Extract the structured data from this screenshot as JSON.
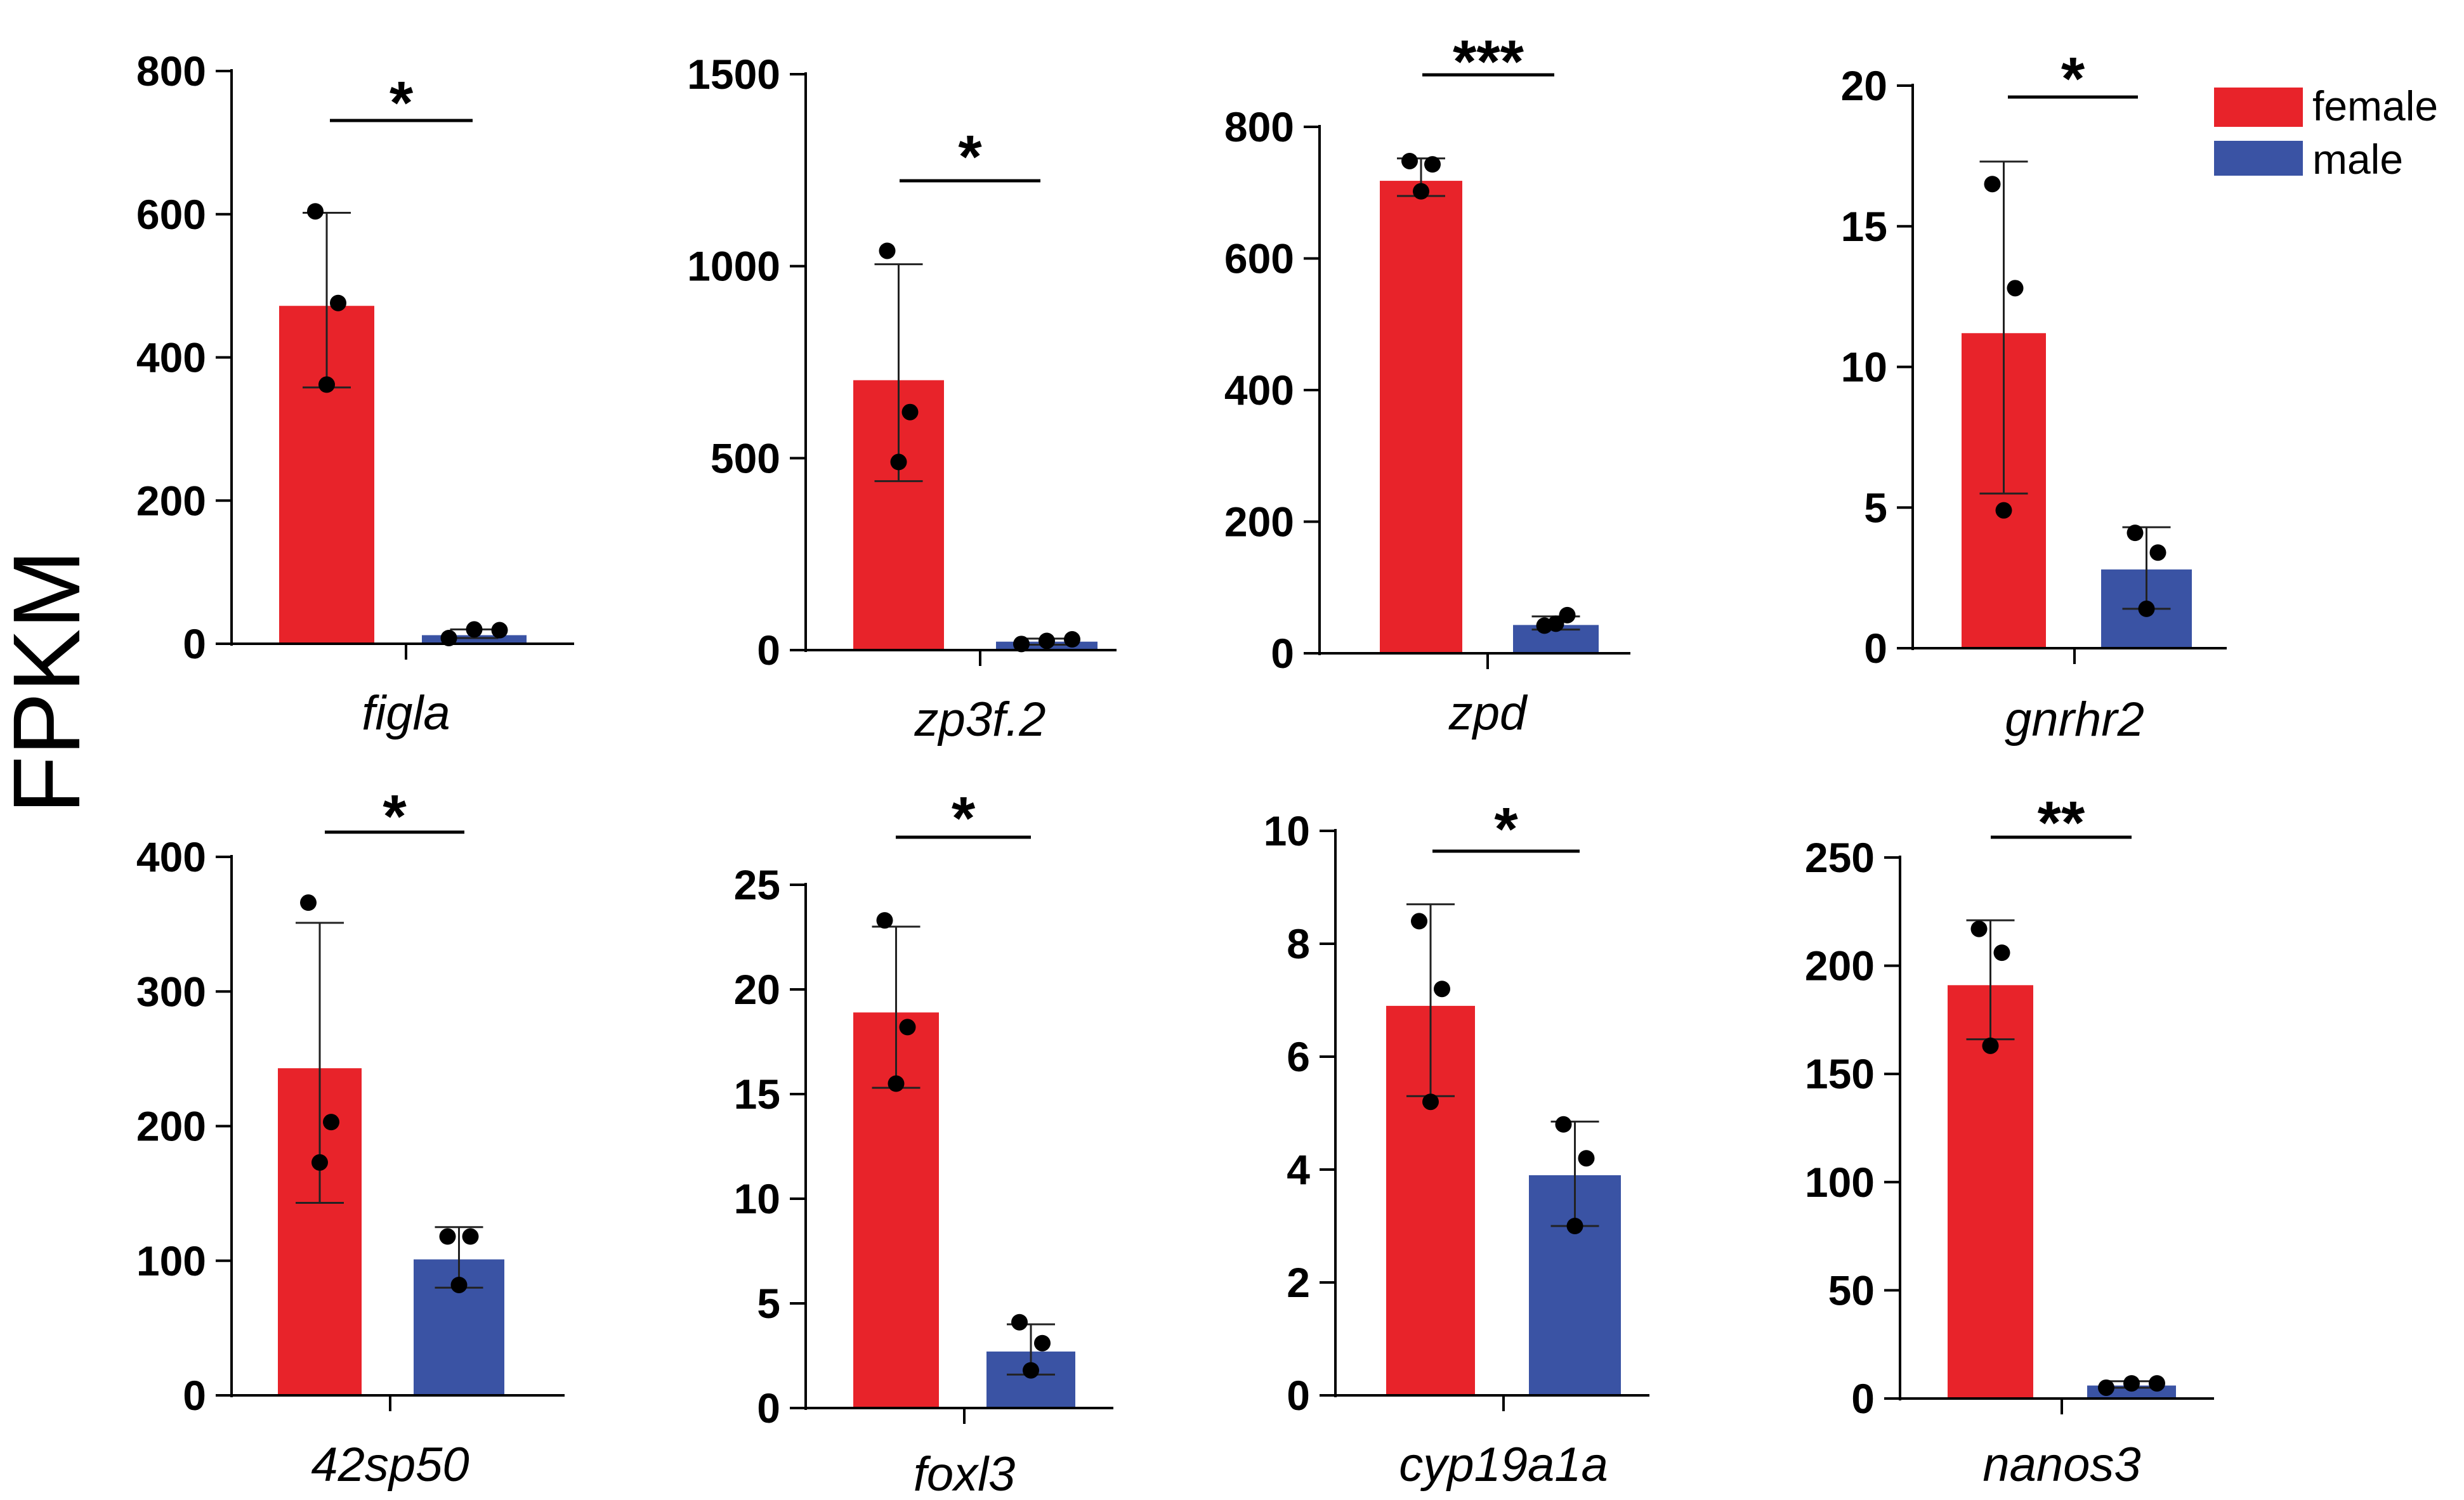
{
  "y_label": "FPKM",
  "legend": {
    "items": [
      {
        "label": "female",
        "color": "#e8232a"
      },
      {
        "label": "male",
        "color": "#3a53a4"
      }
    ]
  },
  "colors": {
    "female": "#e8232a",
    "male": "#3a53a4",
    "axis": "#000000"
  },
  "chart_data": [
    {
      "type": "bar",
      "gene": "figla",
      "significance": "*",
      "categories": [
        "female",
        "male"
      ],
      "ylim": [
        0,
        800
      ],
      "yticks": [
        0,
        200,
        400,
        600,
        800
      ],
      "yticklabels": [
        "0",
        "200",
        "400",
        "600",
        "800"
      ],
      "series": [
        {
          "name": "female",
          "mean": 472,
          "sd_low": 358,
          "sd_high": 602,
          "points": [
            604,
            476,
            362
          ]
        },
        {
          "name": "male",
          "mean": 12,
          "sd_low": 8,
          "sd_high": 20,
          "points": [
            8,
            20,
            19
          ]
        }
      ]
    },
    {
      "type": "bar",
      "gene": "zp3f.2",
      "significance": "*",
      "categories": [
        "female",
        "male"
      ],
      "ylim": [
        0,
        1500
      ],
      "yticks": [
        0,
        500,
        1000,
        1500
      ],
      "yticklabels": [
        "0",
        "500",
        "1000",
        "1500"
      ],
      "series": [
        {
          "name": "female",
          "mean": 703,
          "sd_low": 440,
          "sd_high": 1005,
          "points": [
            1040,
            620,
            490
          ]
        },
        {
          "name": "male",
          "mean": 22,
          "sd_low": 14,
          "sd_high": 30,
          "points": [
            16,
            24,
            28
          ]
        }
      ]
    },
    {
      "type": "bar",
      "gene": "zpd",
      "significance": "***",
      "categories": [
        "female",
        "male"
      ],
      "ylim": [
        0,
        800
      ],
      "yticks": [
        0,
        200,
        400,
        600,
        800
      ],
      "yticklabels": [
        "0",
        "200",
        "400",
        "600",
        "800"
      ],
      "series": [
        {
          "name": "female",
          "mean": 718,
          "sd_low": 695,
          "sd_high": 752,
          "points": [
            748,
            743,
            702
          ]
        },
        {
          "name": "male",
          "mean": 43,
          "sd_low": 36,
          "sd_high": 56,
          "points": [
            42,
            58,
            45
          ]
        }
      ]
    },
    {
      "type": "bar",
      "gene": "gnrhr2",
      "significance": "*",
      "categories": [
        "female",
        "male"
      ],
      "ylim": [
        0,
        20
      ],
      "yticks": [
        0,
        5,
        10,
        15,
        20
      ],
      "yticklabels": [
        "0",
        "5",
        "10",
        "15",
        "20"
      ],
      "series": [
        {
          "name": "female",
          "mean": 11.2,
          "sd_low": 5.5,
          "sd_high": 17.3,
          "points": [
            16.5,
            12.8,
            4.9
          ]
        },
        {
          "name": "male",
          "mean": 2.8,
          "sd_low": 1.4,
          "sd_high": 4.3,
          "points": [
            4.1,
            3.4,
            1.4
          ]
        }
      ]
    },
    {
      "type": "bar",
      "gene": "42sp50",
      "significance": "*",
      "categories": [
        "female",
        "male"
      ],
      "ylim": [
        0,
        400
      ],
      "yticks": [
        0,
        100,
        200,
        300,
        400
      ],
      "yticklabels": [
        "0",
        "100",
        "200",
        "300",
        "400"
      ],
      "series": [
        {
          "name": "female",
          "mean": 243,
          "sd_low": 143,
          "sd_high": 351,
          "points": [
            366,
            203,
            173
          ]
        },
        {
          "name": "male",
          "mean": 101,
          "sd_low": 80,
          "sd_high": 125,
          "points": [
            118,
            118,
            82
          ]
        }
      ]
    },
    {
      "type": "bar",
      "gene": "foxl3",
      "significance": "*",
      "categories": [
        "female",
        "male"
      ],
      "ylim": [
        0,
        25
      ],
      "yticks": [
        0,
        5,
        10,
        15,
        20,
        25
      ],
      "yticklabels": [
        "0",
        "5",
        "10",
        "15",
        "20",
        "25"
      ],
      "series": [
        {
          "name": "female",
          "mean": 18.9,
          "sd_low": 15.3,
          "sd_high": 23.0,
          "points": [
            23.3,
            18.2,
            15.5
          ]
        },
        {
          "name": "male",
          "mean": 2.7,
          "sd_low": 1.6,
          "sd_high": 4.0,
          "points": [
            4.1,
            3.1,
            1.8
          ]
        }
      ]
    },
    {
      "type": "bar",
      "gene": "cyp19a1a",
      "significance": "*",
      "categories": [
        "female",
        "male"
      ],
      "ylim": [
        0,
        10
      ],
      "yticks": [
        0,
        2,
        4,
        6,
        8,
        10
      ],
      "yticklabels": [
        "0",
        "2",
        "4",
        "6",
        "8",
        "10"
      ],
      "series": [
        {
          "name": "female",
          "mean": 6.9,
          "sd_low": 5.3,
          "sd_high": 8.7,
          "points": [
            8.4,
            7.2,
            5.2
          ]
        },
        {
          "name": "male",
          "mean": 3.9,
          "sd_low": 3.0,
          "sd_high": 4.85,
          "points": [
            4.8,
            4.2,
            3.0
          ]
        }
      ]
    },
    {
      "type": "bar",
      "gene": "nanos3",
      "significance": "**",
      "categories": [
        "female",
        "male"
      ],
      "ylim": [
        0,
        250
      ],
      "yticks": [
        0,
        50,
        100,
        150,
        200,
        250
      ],
      "yticklabels": [
        "0",
        "50",
        "100",
        "150",
        "200",
        "250"
      ],
      "series": [
        {
          "name": "female",
          "mean": 191,
          "sd_low": 166,
          "sd_high": 221,
          "points": [
            217,
            206,
            163
          ]
        },
        {
          "name": "male",
          "mean": 6,
          "sd_low": 5,
          "sd_high": 8,
          "points": [
            5,
            7,
            7
          ]
        }
      ]
    }
  ]
}
